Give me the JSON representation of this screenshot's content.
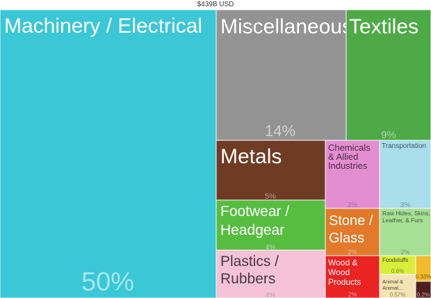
{
  "chart_data": {
    "type": "treemap",
    "title": "$439B USD",
    "tiles": [
      {
        "label": "Machinery / Electrical",
        "percent": "50%",
        "color": "#3ac7d6",
        "text_color": "#ffffff",
        "pct_color": "#a5e6ee"
      },
      {
        "label": "Miscellaneous",
        "percent": "14%",
        "color": "#939393",
        "text_color": "#ffffff",
        "pct_color": "#d2d2d2"
      },
      {
        "label": "Textiles",
        "percent": "9%",
        "color": "#4daa46",
        "text_color": "#ffffff",
        "pct_color": "#a9d8a4"
      },
      {
        "label": "Metals",
        "percent": "5%",
        "color": "#6e3c22",
        "text_color": "#ffffff",
        "pct_color": "#b89a8b"
      },
      {
        "label": "Chemicals & Allied Industries",
        "percent": "3%",
        "color": "#e48ed2",
        "text_color": "#4b2a44",
        "pct_color": "#a5669a"
      },
      {
        "label": "Transportation",
        "percent": "3%",
        "color": "#a9deea",
        "text_color": "#3d5a63",
        "pct_color": "#6e9aa5"
      },
      {
        "label": "Footwear / Headgear",
        "percent": "4%",
        "color": "#56bd40",
        "text_color": "#ffffff",
        "pct_color": "#b6e2ab"
      },
      {
        "label": "Stone / Glass",
        "percent": "2%",
        "color": "#e27a2a",
        "text_color": "#ffffff",
        "pct_color": "#f1bf95"
      },
      {
        "label": "Raw Hides, Skins, Leather, & Furs",
        "percent": "2%",
        "color": "#a6df95",
        "text_color": "#3f5a37",
        "pct_color": "#6e9a62"
      },
      {
        "label": "Plastics / Rubbers",
        "percent": "4%",
        "color": "#f5c2d7",
        "text_color": "#4a3a40",
        "pct_color": "#b899a6"
      },
      {
        "label": "Wood & Wood Products",
        "percent": "2%",
        "color": "#ea2323",
        "text_color": "#ffffff",
        "pct_color": "#f49999"
      },
      {
        "label": "Foodstuffs",
        "percent": "0.6%",
        "color": "#d8ee3c",
        "text_color": "#3e4414",
        "pct_color": "#7a8a1c"
      },
      {
        "label": "Animal & Animal...",
        "percent": "0.57%",
        "color": "#f4e4b4",
        "text_color": "#4a4330",
        "pct_color": "#8a8060"
      },
      {
        "label": "",
        "percent": "0.33%",
        "color": "#f2bc2c",
        "text_color": "#4a3a0c",
        "pct_color": "#7a5e14"
      },
      {
        "label": "",
        "percent": "0.2%",
        "color": "#4f1f1f",
        "text_color": "#ffffff",
        "pct_color": "#d0a0a0"
      }
    ]
  }
}
